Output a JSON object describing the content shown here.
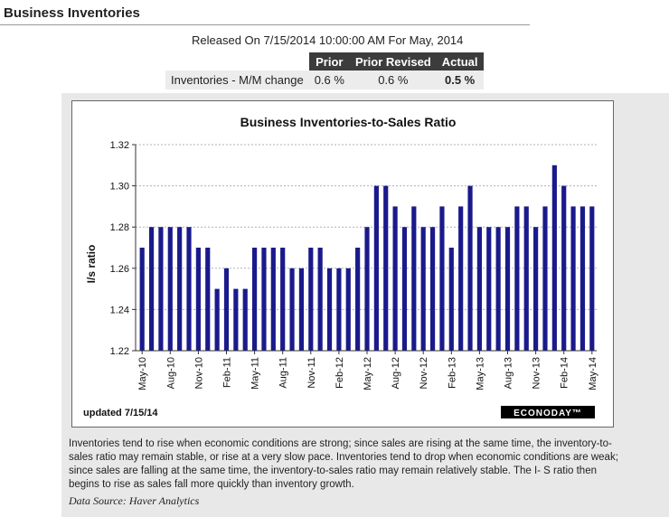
{
  "header": {
    "title": "Business Inventories"
  },
  "release": {
    "text": "Released On 7/15/2014 10:00:00 AM For May, 2014",
    "columns": [
      "",
      "Prior",
      "Prior Revised",
      "Actual"
    ],
    "row": {
      "label": "Inventories - M/M change",
      "prior": "0.6 %",
      "prior_revised": "0.6 %",
      "actual": "0.5 %"
    }
  },
  "chart_data": {
    "type": "bar",
    "title": "Business  Inventories-to-Sales Ratio",
    "ylabel": "I/s ratio",
    "xlabel": "",
    "ylim": [
      1.22,
      1.32
    ],
    "yticks": [
      "1.22",
      "1.24",
      "1.26",
      "1.28",
      "1.30",
      "1.32"
    ],
    "grid": true,
    "color": "#1a1a8c",
    "categories": [
      "May-10",
      "Jun-10",
      "Jul-10",
      "Aug-10",
      "Sep-10",
      "Oct-10",
      "Nov-10",
      "Dec-10",
      "Jan-11",
      "Feb-11",
      "Mar-11",
      "Apr-11",
      "May-11",
      "Jun-11",
      "Jul-11",
      "Aug-11",
      "Sep-11",
      "Oct-11",
      "Nov-11",
      "Dec-11",
      "Jan-12",
      "Feb-12",
      "Mar-12",
      "Apr-12",
      "May-12",
      "Jun-12",
      "Jul-12",
      "Aug-12",
      "Sep-12",
      "Oct-12",
      "Nov-12",
      "Dec-12",
      "Jan-13",
      "Feb-13",
      "Mar-13",
      "Apr-13",
      "May-13",
      "Jun-13",
      "Jul-13",
      "Aug-13",
      "Sep-13",
      "Oct-13",
      "Nov-13",
      "Dec-13",
      "Jan-14",
      "Feb-14",
      "Mar-14",
      "Apr-14",
      "May-14"
    ],
    "values": [
      1.27,
      1.28,
      1.28,
      1.28,
      1.28,
      1.28,
      1.27,
      1.27,
      1.25,
      1.26,
      1.25,
      1.25,
      1.27,
      1.27,
      1.27,
      1.27,
      1.26,
      1.26,
      1.27,
      1.27,
      1.26,
      1.26,
      1.26,
      1.27,
      1.28,
      1.3,
      1.3,
      1.29,
      1.28,
      1.29,
      1.28,
      1.28,
      1.29,
      1.27,
      1.29,
      1.3,
      1.28,
      1.28,
      1.28,
      1.28,
      1.29,
      1.29,
      1.28,
      1.29,
      1.31,
      1.3,
      1.29,
      1.29,
      1.29
    ],
    "xtick_labels": [
      "May-10",
      "Aug-10",
      "Nov-10",
      "Feb-11",
      "May-11",
      "Aug-11",
      "Nov-11",
      "Feb-12",
      "May-12",
      "Aug-12",
      "Nov-12",
      "Feb-13",
      "May-13",
      "Aug-13",
      "Nov-13",
      "Feb-14",
      "May-14"
    ],
    "updated": "updated 7/15/14",
    "brand": "ECONODAY™"
  },
  "description": "Inventories tend to rise when economic conditions are strong; since sales are rising at the same time, the inventory-to- sales ratio may remain stable, or rise at a very slow pace. Inventories tend to drop when economic conditions are weak; since sales are falling at the same time, the inventory-to-sales ratio may remain relatively stable. The I- S ratio then begins to rise as sales fall more quickly than inventory growth.",
  "source": "Data Source: Haver Analytics"
}
